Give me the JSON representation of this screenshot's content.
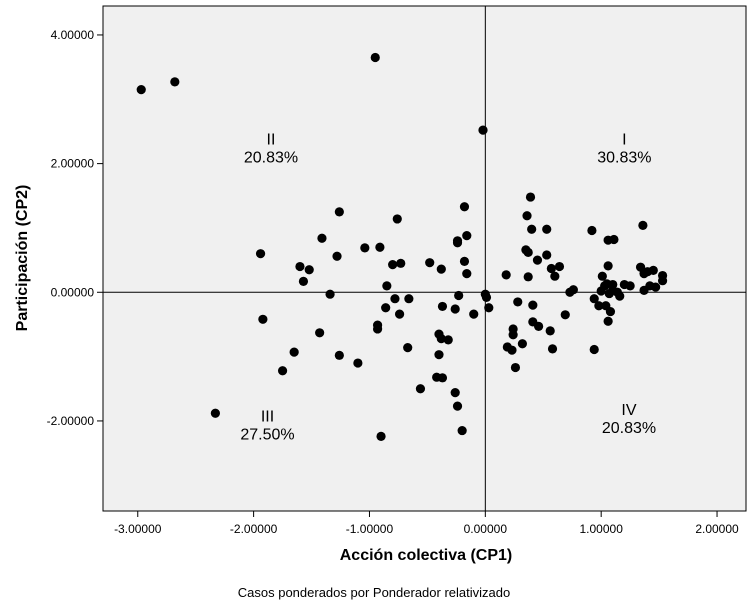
{
  "chart_data": {
    "type": "scatter",
    "xlabel": "Acción colectiva (CP1)",
    "ylabel": "Participación (CP2)",
    "xlim": [
      -3.3,
      2.25
    ],
    "ylim": [
      -3.4,
      4.45
    ],
    "x_ticks": [
      -3.0,
      -2.0,
      -1.0,
      0.0,
      1.0,
      2.0
    ],
    "x_tick_labels": [
      "-3.00000",
      "-2.00000",
      "-1.00000",
      "0.00000",
      "1.00000",
      "2.00000"
    ],
    "y_ticks": [
      -2.0,
      0.0,
      2.0,
      4.0
    ],
    "y_tick_labels": [
      "-2.00000",
      "0.00000",
      "2.00000",
      "4.00000"
    ],
    "reference_lines": {
      "x": 0,
      "y": 0
    },
    "grid": false,
    "background": "#f0f0f0",
    "point_color": "#000000",
    "quadrants": [
      {
        "numeral": "I",
        "percent": "30.83%",
        "x": 1.2,
        "y": 2.2
      },
      {
        "numeral": "II",
        "percent": "20.83%",
        "x": -1.85,
        "y": 2.2
      },
      {
        "numeral": "III",
        "percent": "27.50%",
        "x": -1.88,
        "y": -2.1
      },
      {
        "numeral": "IV",
        "percent": "20.83%",
        "x": 1.24,
        "y": -2.0
      }
    ],
    "points": [
      [
        -2.97,
        3.15
      ],
      [
        -2.68,
        3.27
      ],
      [
        -0.95,
        3.65
      ],
      [
        -0.02,
        2.52
      ],
      [
        -2.33,
        -1.88
      ],
      [
        -1.94,
        0.6
      ],
      [
        -1.92,
        -0.42
      ],
      [
        -1.65,
        -0.93
      ],
      [
        -1.75,
        -1.22
      ],
      [
        -1.6,
        0.4
      ],
      [
        -1.52,
        0.35
      ],
      [
        -1.57,
        0.17
      ],
      [
        -1.41,
        0.84
      ],
      [
        -1.34,
        -0.03
      ],
      [
        -1.43,
        -0.63
      ],
      [
        -1.26,
        1.25
      ],
      [
        -1.28,
        0.56
      ],
      [
        -1.26,
        -0.98
      ],
      [
        -1.1,
        -1.1
      ],
      [
        -1.04,
        0.69
      ],
      [
        -0.91,
        0.7
      ],
      [
        -0.76,
        1.14
      ],
      [
        -0.85,
        0.1
      ],
      [
        -0.8,
        0.43
      ],
      [
        -0.78,
        -0.1
      ],
      [
        -0.73,
        0.45
      ],
      [
        -0.74,
        -0.34
      ],
      [
        -0.86,
        -0.24
      ],
      [
        -0.93,
        -0.51
      ],
      [
        -0.93,
        -0.57
      ],
      [
        -0.66,
        -0.1
      ],
      [
        -0.67,
        -0.86
      ],
      [
        -0.56,
        -1.5
      ],
      [
        -0.48,
        0.46
      ],
      [
        -0.42,
        -1.32
      ],
      [
        -0.38,
        0.36
      ],
      [
        -0.37,
        -0.22
      ],
      [
        -0.4,
        -0.65
      ],
      [
        -0.38,
        -0.72
      ],
      [
        -0.4,
        -0.97
      ],
      [
        -0.37,
        -1.33
      ],
      [
        -0.32,
        -0.74
      ],
      [
        -0.24,
        0.8
      ],
      [
        -0.24,
        0.77
      ],
      [
        -0.18,
        1.33
      ],
      [
        -0.16,
        0.88
      ],
      [
        -0.18,
        0.48
      ],
      [
        -0.16,
        0.29
      ],
      [
        -0.23,
        -0.05
      ],
      [
        -0.26,
        -0.26
      ],
      [
        -0.1,
        -0.34
      ],
      [
        -0.26,
        -1.56
      ],
      [
        -0.24,
        -1.77
      ],
      [
        -0.2,
        -2.15
      ],
      [
        -0.9,
        -2.24
      ],
      [
        0.0,
        -0.03
      ],
      [
        0.01,
        -0.08
      ],
      [
        0.03,
        -0.24
      ],
      [
        0.18,
        0.27
      ],
      [
        0.19,
        -0.85
      ],
      [
        0.23,
        -0.9
      ],
      [
        0.24,
        -0.57
      ],
      [
        0.24,
        -0.66
      ],
      [
        0.26,
        -1.17
      ],
      [
        0.28,
        -0.15
      ],
      [
        0.32,
        -0.8
      ],
      [
        0.35,
        0.66
      ],
      [
        0.37,
        0.62
      ],
      [
        0.36,
        1.19
      ],
      [
        0.39,
        1.48
      ],
      [
        0.4,
        0.98
      ],
      [
        0.37,
        0.24
      ],
      [
        0.41,
        -0.2
      ],
      [
        0.41,
        -0.46
      ],
      [
        0.46,
        -0.53
      ],
      [
        0.45,
        0.5
      ],
      [
        0.53,
        0.58
      ],
      [
        0.53,
        0.98
      ],
      [
        0.57,
        0.37
      ],
      [
        0.6,
        0.25
      ],
      [
        0.64,
        0.4
      ],
      [
        0.56,
        -0.6
      ],
      [
        0.58,
        -0.88
      ],
      [
        0.69,
        -0.35
      ],
      [
        0.76,
        0.04
      ],
      [
        0.73,
        0.0
      ],
      [
        0.92,
        0.96
      ],
      [
        1.06,
        0.81
      ],
      [
        1.11,
        0.82
      ],
      [
        1.01,
        0.25
      ],
      [
        1.06,
        0.41
      ],
      [
        0.94,
        -0.1
      ],
      [
        0.98,
        -0.21
      ],
      [
        1.0,
        0.02
      ],
      [
        1.03,
        0.1
      ],
      [
        1.05,
        0.13
      ],
      [
        1.1,
        0.12
      ],
      [
        1.1,
        0.03
      ],
      [
        1.07,
        -0.02
      ],
      [
        1.14,
        0.0
      ],
      [
        1.16,
        -0.06
      ],
      [
        1.2,
        0.12
      ],
      [
        1.25,
        0.1
      ],
      [
        1.04,
        -0.21
      ],
      [
        1.08,
        -0.3
      ],
      [
        1.06,
        -0.45
      ],
      [
        0.94,
        -0.89
      ],
      [
        1.36,
        1.04
      ],
      [
        1.34,
        0.39
      ],
      [
        1.4,
        0.32
      ],
      [
        1.45,
        0.34
      ],
      [
        1.37,
        0.29
      ],
      [
        1.42,
        0.1
      ],
      [
        1.47,
        0.08
      ],
      [
        1.37,
        0.03
      ],
      [
        1.53,
        0.26
      ],
      [
        1.53,
        0.18
      ]
    ]
  },
  "footnote": "Casos ponderados por Ponderador relativizado"
}
